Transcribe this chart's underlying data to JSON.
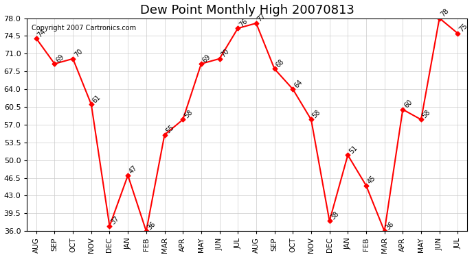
{
  "title": "Dew Point Monthly High 20070813",
  "copyright": "Copyright 2007 Cartronics.com",
  "months": [
    "AUG",
    "SEP",
    "OCT",
    "NOV",
    "DEC",
    "JAN",
    "FEB",
    "MAR",
    "APR",
    "MAY",
    "JUN",
    "JUL",
    "AUG",
    "SEP",
    "OCT",
    "NOV",
    "DEC",
    "JAN",
    "FEB",
    "MAR",
    "APR",
    "MAY",
    "JUN",
    "JUL"
  ],
  "values": [
    74,
    69,
    70,
    61,
    37,
    47,
    36,
    55,
    58,
    69,
    70,
    76,
    77,
    68,
    64,
    58,
    38,
    51,
    45,
    36,
    60,
    58,
    78,
    75
  ],
  "ylim": [
    36.0,
    78.0
  ],
  "yticks": [
    36.0,
    39.5,
    43.0,
    46.5,
    50.0,
    53.5,
    57.0,
    60.5,
    64.0,
    67.5,
    71.0,
    74.5,
    78.0
  ],
  "line_color": "red",
  "marker_color": "red",
  "bg_color": "#ffffff",
  "grid_color": "#cccccc",
  "title_fontsize": 13
}
